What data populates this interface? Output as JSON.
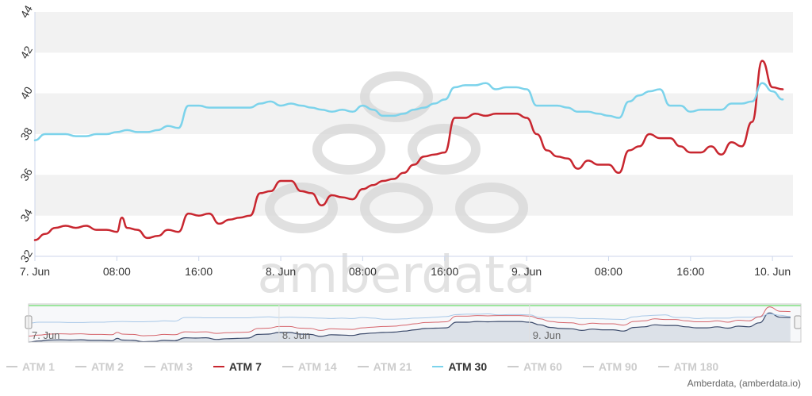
{
  "chart_data": {
    "type": "line",
    "title": "",
    "xlabel": "",
    "ylabel": "",
    "ylim": [
      32,
      44
    ],
    "y_ticks": [
      "32",
      "34",
      "36",
      "38",
      "40",
      "42",
      "44"
    ],
    "x_ticks": [
      {
        "t": 0,
        "label": "7. Jun"
      },
      {
        "t": 8,
        "label": "08:00"
      },
      {
        "t": 16,
        "label": "16:00"
      },
      {
        "t": 24,
        "label": "8. Jun"
      },
      {
        "t": 32,
        "label": "08:00"
      },
      {
        "t": 40,
        "label": "16:00"
      },
      {
        "t": 48,
        "label": "9. Jun"
      },
      {
        "t": 56,
        "label": "08:00"
      },
      {
        "t": 64,
        "label": "16:00"
      },
      {
        "t": 72,
        "label": "10. Jun"
      }
    ],
    "navigator_ticks": [
      {
        "t": 0,
        "label": "7. Jun"
      },
      {
        "t": 24,
        "label": "8. Jun"
      },
      {
        "t": 48,
        "label": "9. Jun"
      }
    ],
    "series": [
      {
        "name": "ATM 7",
        "color": "#c8262f",
        "points": [
          [
            0,
            32.8
          ],
          [
            1,
            33.1
          ],
          [
            2,
            33.4
          ],
          [
            3,
            33.5
          ],
          [
            4,
            33.4
          ],
          [
            5,
            33.5
          ],
          [
            6,
            33.3
          ],
          [
            7,
            33.3
          ],
          [
            8,
            33.2
          ],
          [
            8.5,
            33.9
          ],
          [
            9,
            33.4
          ],
          [
            10,
            33.3
          ],
          [
            11,
            32.9
          ],
          [
            12,
            33.0
          ],
          [
            13,
            33.3
          ],
          [
            14,
            33.2
          ],
          [
            15,
            34.1
          ],
          [
            16,
            34.0
          ],
          [
            17,
            34.1
          ],
          [
            18,
            33.6
          ],
          [
            19,
            33.8
          ],
          [
            20,
            33.9
          ],
          [
            21,
            34.0
          ],
          [
            22,
            35.1
          ],
          [
            23,
            35.2
          ],
          [
            24,
            35.7
          ],
          [
            25,
            35.7
          ],
          [
            26,
            35.2
          ],
          [
            27,
            35.1
          ],
          [
            28,
            34.5
          ],
          [
            29,
            35.0
          ],
          [
            30,
            34.9
          ],
          [
            31,
            34.8
          ],
          [
            32,
            35.3
          ],
          [
            33,
            35.5
          ],
          [
            34,
            35.7
          ],
          [
            35,
            35.8
          ],
          [
            36,
            36.1
          ],
          [
            37,
            36.5
          ],
          [
            38,
            36.9
          ],
          [
            39,
            37.0
          ],
          [
            40,
            37.1
          ],
          [
            41,
            38.8
          ],
          [
            42,
            38.8
          ],
          [
            43,
            39.0
          ],
          [
            44,
            38.9
          ],
          [
            45,
            39.0
          ],
          [
            46,
            39.0
          ],
          [
            47,
            39.0
          ],
          [
            48,
            38.8
          ],
          [
            49,
            38.0
          ],
          [
            50,
            37.2
          ],
          [
            51,
            36.9
          ],
          [
            52,
            36.8
          ],
          [
            53,
            36.3
          ],
          [
            54,
            36.7
          ],
          [
            55,
            36.5
          ],
          [
            56,
            36.5
          ],
          [
            57,
            36.1
          ],
          [
            58,
            37.2
          ],
          [
            59,
            37.4
          ],
          [
            60,
            38.0
          ],
          [
            61,
            37.8
          ],
          [
            62,
            37.8
          ],
          [
            63,
            37.4
          ],
          [
            64,
            37.1
          ],
          [
            65,
            37.1
          ],
          [
            66,
            37.4
          ],
          [
            67,
            37.0
          ],
          [
            68,
            37.6
          ],
          [
            69,
            37.4
          ],
          [
            70,
            38.6
          ],
          [
            71,
            41.6
          ],
          [
            72,
            40.3
          ],
          [
            73,
            40.2
          ]
        ]
      },
      {
        "name": "ATM 30",
        "color": "#7cd3eb",
        "points": [
          [
            0,
            37.7
          ],
          [
            1,
            38.0
          ],
          [
            2,
            38.0
          ],
          [
            3,
            38.0
          ],
          [
            4,
            37.9
          ],
          [
            5,
            37.9
          ],
          [
            6,
            38.0
          ],
          [
            7,
            38.0
          ],
          [
            8,
            38.1
          ],
          [
            9,
            38.2
          ],
          [
            10,
            38.1
          ],
          [
            11,
            38.1
          ],
          [
            12,
            38.2
          ],
          [
            13,
            38.4
          ],
          [
            14,
            38.3
          ],
          [
            15,
            39.4
          ],
          [
            16,
            39.4
          ],
          [
            17,
            39.3
          ],
          [
            18,
            39.3
          ],
          [
            19,
            39.3
          ],
          [
            20,
            39.3
          ],
          [
            21,
            39.3
          ],
          [
            22,
            39.5
          ],
          [
            23,
            39.6
          ],
          [
            24,
            39.4
          ],
          [
            25,
            39.5
          ],
          [
            26,
            39.4
          ],
          [
            27,
            39.3
          ],
          [
            28,
            39.2
          ],
          [
            29,
            39.1
          ],
          [
            30,
            39.2
          ],
          [
            31,
            39.1
          ],
          [
            32,
            39.4
          ],
          [
            33,
            39.2
          ],
          [
            34,
            38.9
          ],
          [
            35,
            38.9
          ],
          [
            36,
            39.0
          ],
          [
            37,
            39.2
          ],
          [
            38,
            39.3
          ],
          [
            39,
            39.5
          ],
          [
            40,
            39.7
          ],
          [
            41,
            40.3
          ],
          [
            42,
            40.4
          ],
          [
            43,
            40.4
          ],
          [
            44,
            40.5
          ],
          [
            45,
            40.2
          ],
          [
            46,
            40.3
          ],
          [
            47,
            40.3
          ],
          [
            48,
            40.2
          ],
          [
            49,
            39.4
          ],
          [
            50,
            39.4
          ],
          [
            51,
            39.4
          ],
          [
            52,
            39.3
          ],
          [
            53,
            39.1
          ],
          [
            54,
            39.1
          ],
          [
            55,
            39.0
          ],
          [
            56,
            38.9
          ],
          [
            57,
            38.8
          ],
          [
            58,
            39.6
          ],
          [
            59,
            39.9
          ],
          [
            60,
            40.1
          ],
          [
            61,
            40.2
          ],
          [
            62,
            39.4
          ],
          [
            63,
            39.4
          ],
          [
            64,
            39.1
          ],
          [
            65,
            39.2
          ],
          [
            66,
            39.2
          ],
          [
            67,
            39.2
          ],
          [
            68,
            39.5
          ],
          [
            69,
            39.5
          ],
          [
            70,
            39.6
          ],
          [
            71,
            40.5
          ],
          [
            72,
            40.1
          ],
          [
            73,
            39.7
          ]
        ]
      }
    ]
  },
  "legend": [
    {
      "name": "ATM 1",
      "color": "#cccccc",
      "active": false
    },
    {
      "name": "ATM 2",
      "color": "#cccccc",
      "active": false
    },
    {
      "name": "ATM 3",
      "color": "#cccccc",
      "active": false
    },
    {
      "name": "ATM 7",
      "color": "#c8262f",
      "active": true
    },
    {
      "name": "ATM 14",
      "color": "#cccccc",
      "active": false
    },
    {
      "name": "ATM 21",
      "color": "#cccccc",
      "active": false
    },
    {
      "name": "ATM 30",
      "color": "#7cd3eb",
      "active": true
    },
    {
      "name": "ATM 60",
      "color": "#cccccc",
      "active": false
    },
    {
      "name": "ATM 90",
      "color": "#cccccc",
      "active": false
    },
    {
      "name": "ATM 180",
      "color": "#cccccc",
      "active": false
    }
  ],
  "watermark": "amberdata",
  "credits": "Amberdata, (amberdata.io)",
  "colors": {
    "band": "#f2f2f2",
    "navigator_fill": "#d4dbe3",
    "navigator_line": "#3b4a6b",
    "navigator_green": "#7ee07e"
  }
}
